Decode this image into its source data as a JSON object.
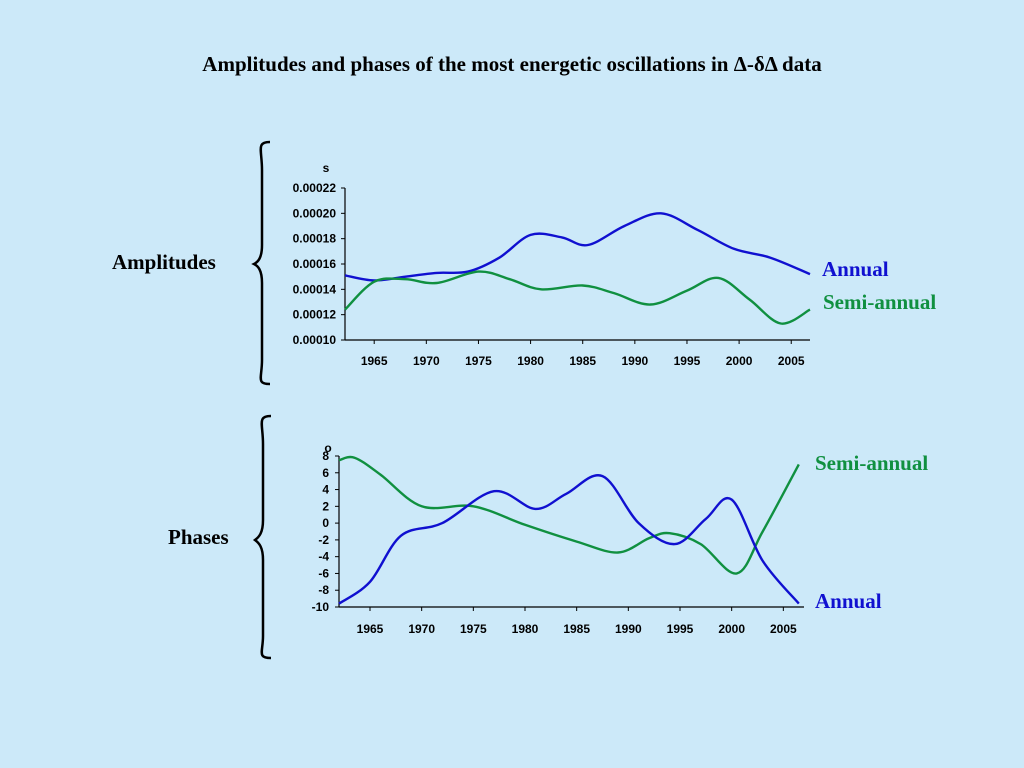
{
  "title": "Amplitudes and phases of the most energetic oscillations in Δ-δΔ data",
  "colors": {
    "background": "#cce9f9",
    "annual": "#1010d0",
    "semi_annual": "#109040"
  },
  "chart_data": [
    {
      "type": "line",
      "section_label": "Amplitudes",
      "unit": "s",
      "x_ticks": [
        1965,
        1970,
        1975,
        1980,
        1985,
        1990,
        1995,
        2000,
        2005
      ],
      "y_ticks": [
        "0.00010",
        "0.00012",
        "0.00014",
        "0.00016",
        "0.00018",
        "0.00020",
        "0.00022"
      ],
      "xlim": [
        1962.2,
        2006.8
      ],
      "ylim": [
        0.0001,
        0.00022
      ],
      "series": [
        {
          "name": "Annual",
          "color": "#1010d0",
          "x": [
            1962.2,
            1965,
            1968,
            1971,
            1974,
            1977,
            1980,
            1983,
            1985.5,
            1989,
            1992.5,
            1996,
            1999.5,
            2003,
            2006.8
          ],
          "y": [
            0.000151,
            0.000147,
            0.00015,
            0.000153,
            0.000154,
            0.000165,
            0.000183,
            0.000181,
            0.000175,
            0.00019,
            0.0002,
            0.000187,
            0.000172,
            0.000165,
            0.000152
          ]
        },
        {
          "name": "Semi-annual",
          "color": "#109040",
          "x": [
            1962.2,
            1965,
            1968,
            1971,
            1975,
            1978,
            1981,
            1985,
            1988,
            1991.5,
            1995,
            1998,
            2001,
            2004,
            2006.8
          ],
          "y": [
            0.000124,
            0.000146,
            0.000148,
            0.000145,
            0.000154,
            0.000148,
            0.00014,
            0.000143,
            0.000137,
            0.000128,
            0.000139,
            0.000149,
            0.000132,
            0.000113,
            0.000124
          ]
        }
      ]
    },
    {
      "type": "line",
      "section_label": "Phases",
      "unit": "o",
      "x_ticks": [
        1965,
        1970,
        1975,
        1980,
        1985,
        1990,
        1995,
        2000,
        2005
      ],
      "y_ticks": [
        "8",
        "6",
        "4",
        "2",
        "0",
        "-2",
        "-4",
        "-6",
        "-8",
        "-10"
      ],
      "xlim": [
        1962,
        2007
      ],
      "ylim": [
        -10,
        8
      ],
      "series": [
        {
          "name": "Semi-annual",
          "color": "#109040",
          "x": [
            1962,
            1963.5,
            1966,
            1970,
            1975,
            1980,
            1985,
            1989,
            1992,
            1994,
            1997,
            2000.5,
            2003,
            2006.5
          ],
          "y": [
            7.5,
            7.8,
            5.8,
            2.0,
            2.0,
            -0.2,
            -2.2,
            -3.5,
            -1.8,
            -1.2,
            -2.5,
            -6.0,
            -1.0,
            7.0
          ]
        },
        {
          "name": "Annual",
          "color": "#1010d0",
          "x": [
            1962,
            1965,
            1968,
            1972,
            1977,
            1981,
            1984,
            1987.5,
            1991,
            1994.5,
            1997.5,
            2000,
            2003,
            2006.5
          ],
          "y": [
            -9.6,
            -7.0,
            -1.5,
            0.0,
            3.8,
            1.7,
            3.5,
            5.6,
            0.0,
            -2.5,
            0.5,
            2.8,
            -4.5,
            -9.6
          ]
        }
      ]
    }
  ]
}
